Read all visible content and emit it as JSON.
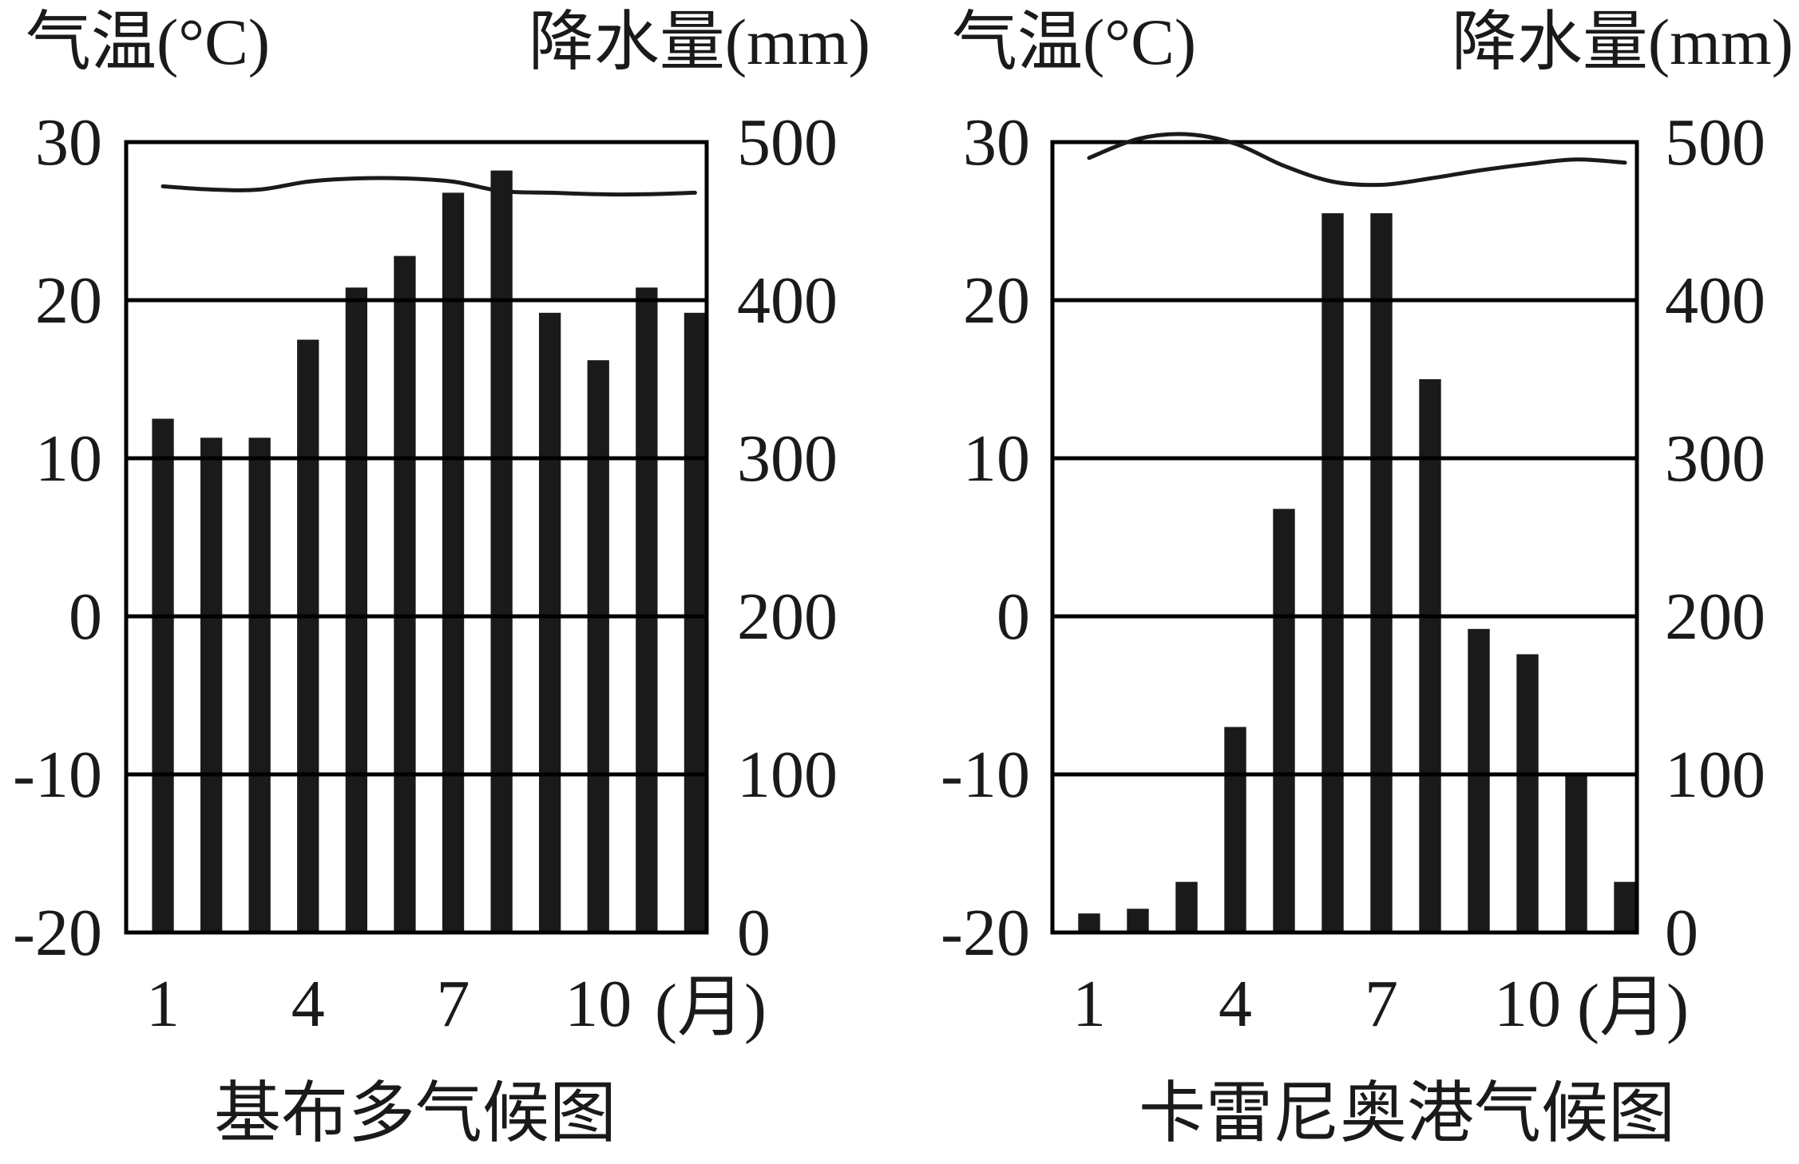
{
  "chart_data": [
    {
      "type": "bar+line",
      "title": "基布多气候图",
      "y_left_label": "气温(°C)",
      "y_right_label": "降水量(mm)",
      "x_unit": "(月)",
      "x_ticks": [
        1,
        4,
        7,
        10
      ],
      "x_tick_labels": [
        "1",
        "4",
        "7",
        "10"
      ],
      "y_left_range": [
        -20,
        30
      ],
      "y_left_ticks": [
        "30",
        "20",
        "10",
        "0",
        "-10",
        "-20"
      ],
      "y_right_range": [
        0,
        500
      ],
      "y_right_ticks": [
        "500",
        "400",
        "300",
        "200",
        "100",
        "0"
      ],
      "grid": true,
      "months": [
        1,
        2,
        3,
        4,
        5,
        6,
        7,
        8,
        9,
        10,
        11,
        12
      ],
      "precipitation_mm": [
        325,
        313,
        313,
        375,
        408,
        428,
        468,
        482,
        392,
        362,
        408,
        392
      ],
      "temperature_c": [
        27.2,
        27.0,
        27.0,
        27.5,
        27.7,
        27.7,
        27.5,
        26.9,
        26.8,
        26.7,
        26.7,
        26.8
      ]
    },
    {
      "type": "bar+line",
      "title": "卡雷尼奥港气候图",
      "y_left_label": "气温(°C)",
      "y_right_label": "降水量(mm)",
      "x_unit": "(月)",
      "x_ticks": [
        1,
        4,
        7,
        10
      ],
      "x_tick_labels": [
        "1",
        "4",
        "7",
        "10"
      ],
      "y_left_range": [
        -20,
        30
      ],
      "y_left_ticks": [
        "30",
        "20",
        "10",
        "0",
        "-10",
        "-20"
      ],
      "y_right_range": [
        0,
        500
      ],
      "y_right_ticks": [
        "500",
        "400",
        "300",
        "200",
        "100",
        "0"
      ],
      "grid": true,
      "months": [
        1,
        2,
        3,
        4,
        5,
        6,
        7,
        8,
        9,
        10,
        11,
        12
      ],
      "precipitation_mm": [
        12,
        15,
        32,
        130,
        268,
        455,
        455,
        350,
        192,
        176,
        100,
        32
      ],
      "temperature_c": [
        29.0,
        30.2,
        30.5,
        29.9,
        28.5,
        27.5,
        27.3,
        27.7,
        28.2,
        28.6,
        28.9,
        28.7
      ]
    }
  ]
}
